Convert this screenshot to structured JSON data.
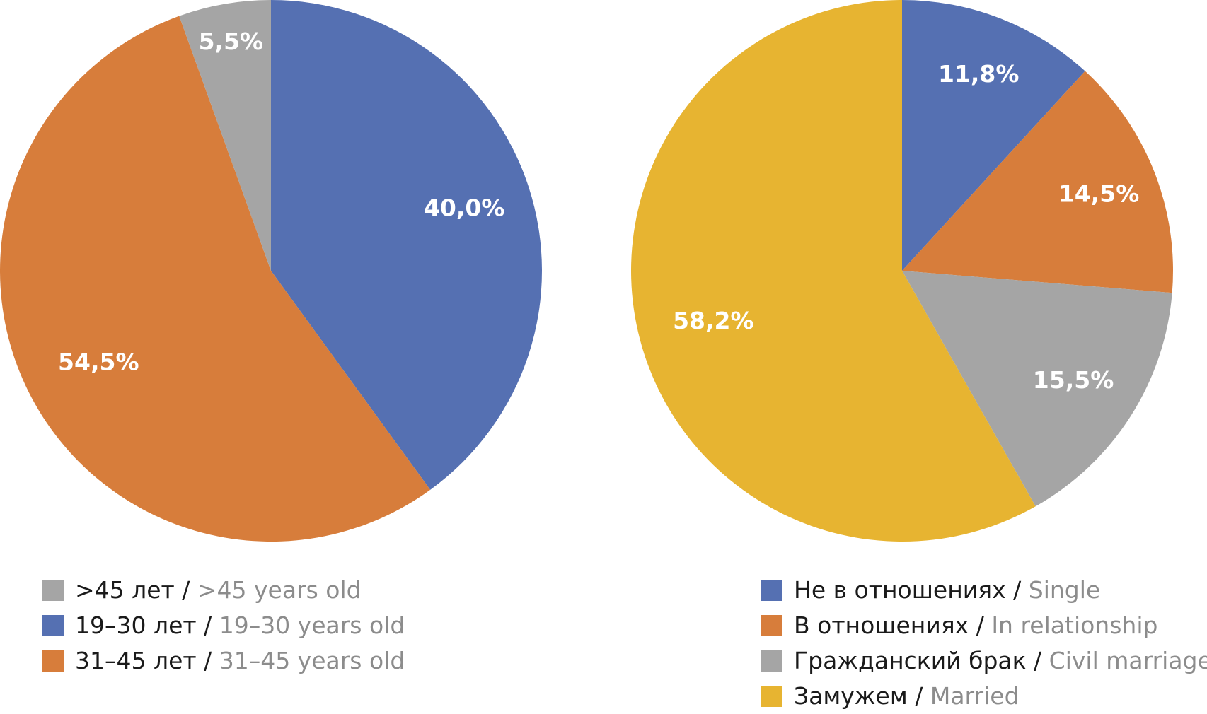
{
  "chart_data": [
    {
      "type": "pie",
      "title": "",
      "start_angle_deg": 0,
      "direction": "clockwise",
      "slices": [
        {
          "ru": "19–30 лет",
          "en": "19–30 years old",
          "value": 40.0,
          "label": "40,0%",
          "color": "#5570b2"
        },
        {
          "ru": "31–45 лет",
          "en": "31–45 years old",
          "value": 54.5,
          "label": "54,5%",
          "color": "#d77d3b"
        },
        {
          "ru": ">45 лет",
          "en": ">45 years old",
          "value": 5.5,
          "label": "5,5%",
          "color": "#a5a5a5"
        }
      ],
      "legend": [
        {
          "ru": ">45 лет",
          "en": ">45 years old",
          "color": "#a5a5a5"
        },
        {
          "ru": "19–30 лет",
          "en": "19–30 years old",
          "color": "#5570b2"
        },
        {
          "ru": "31–45 лет",
          "en": "31–45 years old",
          "color": "#d77d3b"
        }
      ],
      "legend_position": "bottom-left"
    },
    {
      "type": "pie",
      "title": "",
      "start_angle_deg": 0,
      "direction": "clockwise",
      "slices": [
        {
          "ru": "Не в отношениях",
          "en": "Single",
          "value": 11.8,
          "label": "11,8%",
          "color": "#5570b2"
        },
        {
          "ru": "В отношениях",
          "en": "In relationship",
          "value": 14.5,
          "label": "14,5%",
          "color": "#d77d3b"
        },
        {
          "ru": "Гражданский брак",
          "en": "Civil marriage",
          "value": 15.5,
          "label": "15,5%",
          "color": "#a5a5a5"
        },
        {
          "ru": "Замужем",
          "en": "Married",
          "value": 58.2,
          "label": "58,2%",
          "color": "#e7b431"
        }
      ],
      "legend": [
        {
          "ru": "Не в отношениях",
          "en": "Single",
          "color": "#5570b2"
        },
        {
          "ru": "В отношениях",
          "en": "In relationship",
          "color": "#d77d3b"
        },
        {
          "ru": "Гражданский брак",
          "en": "Civil marriage",
          "color": "#a5a5a5"
        },
        {
          "ru": "Замужем",
          "en": "Married",
          "color": "#e7b431"
        }
      ],
      "legend_position": "bottom-right"
    }
  ]
}
